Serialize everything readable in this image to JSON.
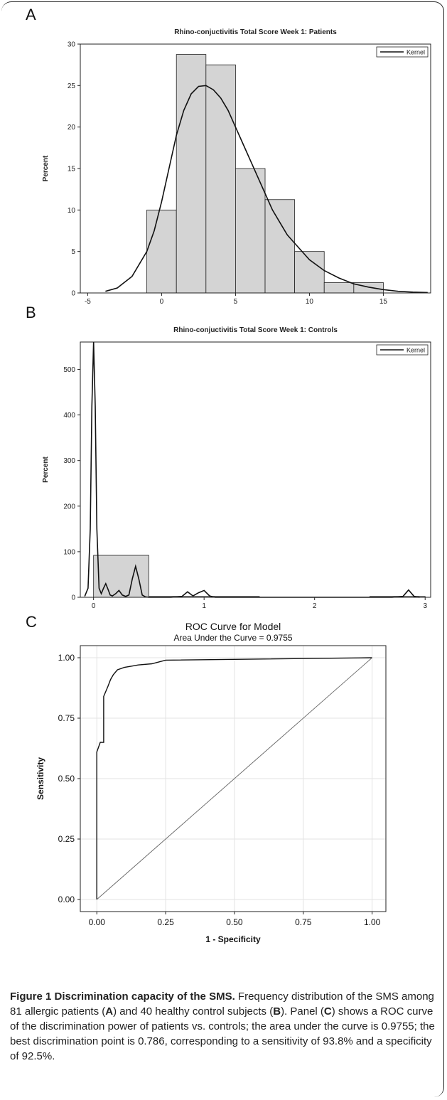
{
  "panels": {
    "A": {
      "letter": "A",
      "chart_data": {
        "type": "histogram",
        "title": "Rhino-conjuctivitis Total Score Week 1: Patients",
        "ylabel": "Percent",
        "xlabel": "",
        "xlim": [
          -5.5,
          18.2
        ],
        "ylim": [
          0,
          30
        ],
        "xticks": [
          -5,
          0,
          5,
          10,
          15
        ],
        "yticks": [
          0,
          5,
          10,
          15,
          20,
          25,
          30
        ],
        "bins": [
          {
            "x0": -1,
            "x1": 1,
            "value": 10
          },
          {
            "x0": 1,
            "x1": 3,
            "value": 28.75
          },
          {
            "x0": 3,
            "x1": 5,
            "value": 27.5
          },
          {
            "x0": 5,
            "x1": 7,
            "value": 15
          },
          {
            "x0": 7,
            "x1": 9,
            "value": 11.25
          },
          {
            "x0": 9,
            "x1": 11,
            "value": 5
          },
          {
            "x0": 11,
            "x1": 13,
            "value": 1.25
          },
          {
            "x0": 13,
            "x1": 15,
            "value": 1.25
          }
        ],
        "series": [
          {
            "name": "Kernel",
            "x": [
              -3.8,
              -3,
              -2,
              -1,
              -0.5,
              0,
              0.5,
              1,
              1.5,
              2,
              2.5,
              3,
              3.5,
              4,
              4.5,
              5,
              5.5,
              6,
              6.5,
              7,
              7.5,
              8,
              8.5,
              9,
              10,
              11,
              12,
              13,
              14,
              15,
              16,
              17,
              18
            ],
            "y": [
              0.2,
              0.6,
              2,
              5,
              7.5,
              11,
              15,
              19,
              22,
              24,
              24.9,
              25,
              24.5,
              23.5,
              22,
              20,
              18,
              16,
              14,
              12,
              10,
              8.5,
              7,
              6,
              4,
              2.7,
              1.8,
              1.1,
              0.7,
              0.4,
              0.2,
              0.1,
              0.05
            ]
          }
        ],
        "legend": {
          "position": "top-right",
          "entries": [
            "Kernel"
          ]
        }
      }
    },
    "B": {
      "letter": "B",
      "chart_data": {
        "type": "histogram",
        "title": "Rhino-conjuctivitis Total Score Week 1: Controls",
        "ylabel": "Percent",
        "xlabel": "",
        "xlim": [
          -0.12,
          3.05
        ],
        "ylim": [
          0,
          560
        ],
        "xticks": [
          0,
          1,
          2,
          3
        ],
        "yticks": [
          0,
          100,
          200,
          300,
          400,
          500
        ],
        "bins": [
          {
            "x0": 0,
            "x1": 0.5,
            "value": 92
          },
          {
            "x0": 0.5,
            "x1": 1.5,
            "value": 2
          },
          {
            "x0": 2.5,
            "x1": 3.0,
            "value": 2
          }
        ],
        "series": [
          {
            "name": "Kernel",
            "x": [
              -0.08,
              -0.05,
              -0.03,
              -0.015,
              0,
              0.015,
              0.03,
              0.05,
              0.07,
              0.09,
              0.11,
              0.13,
              0.15,
              0.17,
              0.2,
              0.23,
              0.26,
              0.29,
              0.32,
              0.35,
              0.38,
              0.41,
              0.44,
              0.47,
              0.5,
              0.55,
              0.7,
              0.8,
              0.85,
              0.9,
              0.95,
              1.0,
              1.05,
              1.1,
              1.3,
              2.0,
              2.7,
              2.8,
              2.85,
              2.9,
              2.95
            ],
            "y": [
              2,
              20,
              150,
              420,
              560,
              420,
              150,
              20,
              8,
              20,
              30,
              18,
              5,
              3,
              8,
              15,
              5,
              2,
              5,
              40,
              68,
              40,
              5,
              1,
              0,
              0,
              0,
              2,
              12,
              3,
              10,
              15,
              3,
              0,
              0,
              0,
              0,
              2,
              16,
              2,
              0
            ]
          }
        ],
        "legend": {
          "position": "top-right",
          "entries": [
            "Kernel"
          ]
        }
      }
    },
    "C": {
      "letter": "C",
      "chart_data": {
        "type": "line",
        "title": "ROC Curve for Model",
        "subtitle": "Area Under the Curve = 0.9755",
        "xlabel": "1 - Specificity",
        "ylabel": "Sensitivity",
        "xlim": [
          -0.06,
          1.05
        ],
        "ylim": [
          -0.05,
          1.05
        ],
        "xticks": [
          "0.00",
          "0.25",
          "0.50",
          "0.75",
          "1.00"
        ],
        "yticks": [
          "0.00",
          "0.25",
          "0.50",
          "0.75",
          "1.00"
        ],
        "grid": true,
        "series": [
          {
            "name": "ROC",
            "x": [
              0,
              0,
              0.0125,
              0.025,
              0.025,
              0.04,
              0.05,
              0.06,
              0.075,
              0.1,
              0.125,
              0.15,
              0.2,
              0.25,
              1.0
            ],
            "y": [
              0,
              0.61,
              0.65,
              0.65,
              0.84,
              0.88,
              0.91,
              0.93,
              0.95,
              0.96,
              0.965,
              0.97,
              0.975,
              0.99,
              1.0
            ]
          },
          {
            "name": "Reference",
            "x": [
              0,
              1
            ],
            "y": [
              0,
              1
            ]
          }
        ]
      }
    }
  },
  "caption": {
    "label": "Figure 1 Discrimination capacity of the SMS.",
    "text_1": " Frequency distribution of the SMS among 81 allergic patients (",
    "a": "A",
    "text_2": ") and 40 healthy control subjects (",
    "b": "B",
    "text_3": "). Panel (",
    "c": "C",
    "text_4": ") shows a ROC curve of the discrimination power of patients vs. controls; the area under the curve is 0.9755; the best discrimination point is 0.786, corresponding to a sensitivity of 93.8% and a specificity of 92.5%."
  }
}
